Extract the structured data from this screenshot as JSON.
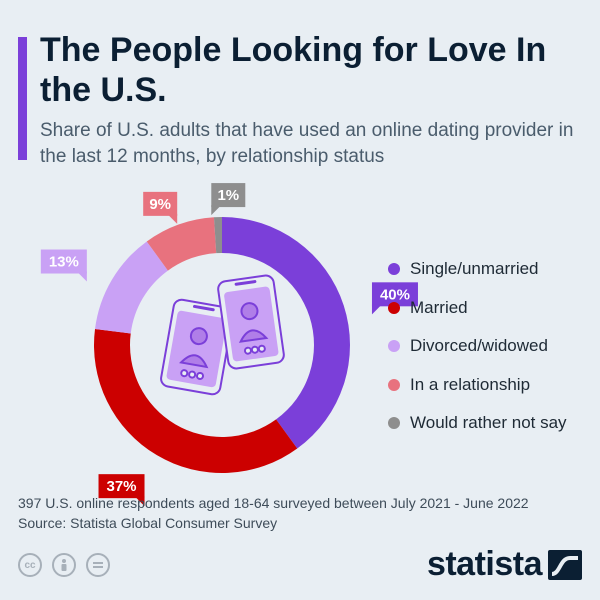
{
  "header": {
    "title": "The People Looking for Love In the U.S.",
    "subtitle": "Share of U.S. adults that have used an online dating provider in the last 12 months, by relationship status"
  },
  "chart_data": {
    "type": "pie",
    "variant": "donut",
    "title": "The People Looking for Love In the U.S.",
    "subtitle": "Share of U.S. adults that have used an online dating provider in the last 12 months, by relationship status",
    "unit": "%",
    "slices": [
      {
        "name": "Single/unmarried",
        "value": 40,
        "label": "40%",
        "color": "#7b3fd9",
        "label_text_color": "#ffffff"
      },
      {
        "name": "Married",
        "value": 37,
        "label": "37%",
        "color": "#cc0000",
        "label_text_color": "#ffffff"
      },
      {
        "name": "Divorced/widowed",
        "value": 13,
        "label": "13%",
        "color": "#c9a1f5",
        "label_text_color": "#ffffff"
      },
      {
        "name": "In a relationship",
        "value": 9,
        "label": "9%",
        "color": "#e8727e",
        "label_text_color": "#ffffff"
      },
      {
        "name": "Would rather not say",
        "value": 1,
        "label": "1%",
        "color": "#8e8e8e",
        "label_text_color": "#ffffff"
      }
    ],
    "legend_position": "right"
  },
  "footer": {
    "note": "397 U.S. online respondents aged 18-64 surveyed between July 2021 - June 2022",
    "source": "Source: Statista Global Consumer Survey",
    "brand": "statista",
    "license_icons": [
      "cc-icon",
      "attribution-icon",
      "no-derivatives-icon"
    ]
  }
}
